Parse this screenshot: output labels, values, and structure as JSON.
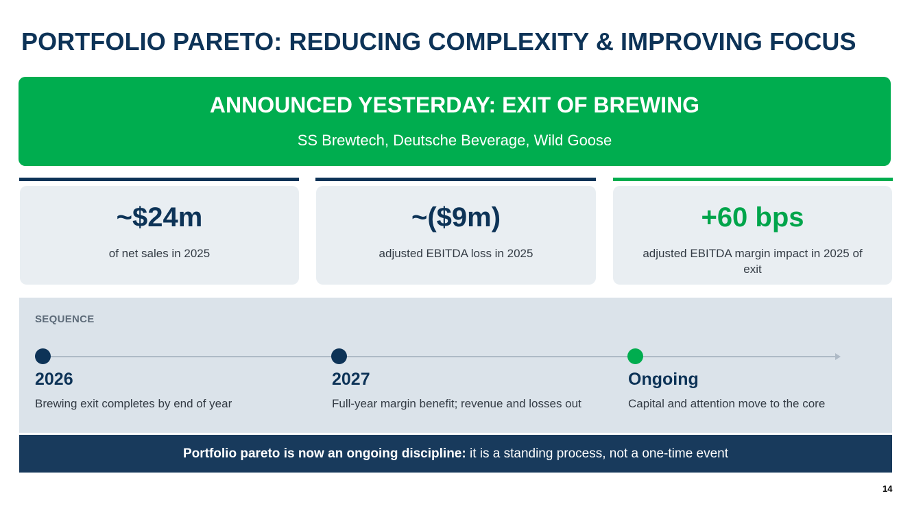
{
  "slide": {
    "title": "PORTFOLIO PARETO: REDUCING COMPLEXITY & IMPROVING FOCUS",
    "page_number": "14"
  },
  "banner": {
    "heading": "ANNOUNCED YESTERDAY: EXIT OF BREWING",
    "subheading": "SS Brewtech, Deutsche Beverage, Wild Goose",
    "color": "#00ad4f"
  },
  "metrics": [
    {
      "value": "~$24m",
      "description": "of net sales in 2025",
      "accent": "#0d3357"
    },
    {
      "value": "~($9m)",
      "description": "adjusted EBITDA loss in 2025",
      "accent": "#0d3357"
    },
    {
      "value": "+60 bps",
      "description": "adjusted EBITDA margin impact in 2025 of exit",
      "accent": "#00ad4f"
    }
  ],
  "sequence": {
    "label": "SEQUENCE",
    "steps": [
      {
        "title": "2026",
        "description": "Brewing exit completes by end of year",
        "dot_color": "#0d3357"
      },
      {
        "title": "2027",
        "description": "Full-year margin benefit; revenue and losses out",
        "dot_color": "#0d3357"
      },
      {
        "title": "Ongoing",
        "description": "Capital and attention move to the core",
        "dot_color": "#00ad4f"
      }
    ]
  },
  "footer": {
    "bold_text": "Portfolio pareto is now an ongoing discipline:",
    "text": " it is a standing process, not a one-time event"
  }
}
